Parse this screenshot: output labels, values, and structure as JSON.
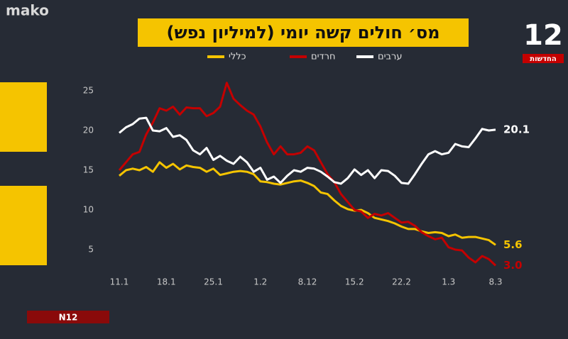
{
  "brand": "mako",
  "channel": "12",
  "channel_sub": "החדשות",
  "footer_logo": "N12",
  "chart_data": {
    "type": "line",
    "title": "מס׳ חולים קשה יומי (למיליון נפש)",
    "categories": [
      "11.1",
      null,
      null,
      null,
      null,
      null,
      null,
      "18.1",
      null,
      null,
      null,
      null,
      null,
      null,
      "25.1",
      null,
      null,
      null,
      null,
      null,
      null,
      "1.2",
      null,
      null,
      null,
      null,
      null,
      null,
      "8.12",
      null,
      null,
      null,
      null,
      null,
      null,
      "15.2",
      null,
      null,
      null,
      null,
      null,
      null,
      "22.2",
      null,
      null,
      null,
      null,
      null,
      null,
      "1.3",
      null,
      null,
      null,
      null,
      null,
      null,
      "8.3"
    ],
    "ylim": [
      2.5,
      27
    ],
    "yticks": [
      5,
      10,
      15,
      20,
      25
    ],
    "grid": false,
    "series": [
      {
        "name": "כללי",
        "color": "#f5c400",
        "values": [
          14.3,
          15.0,
          15.2,
          15.0,
          15.4,
          14.8,
          16.0,
          15.3,
          15.8,
          15.1,
          15.6,
          15.4,
          15.3,
          14.8,
          15.2,
          14.4,
          14.6,
          14.8,
          14.9,
          14.8,
          14.5,
          13.6,
          13.5,
          13.3,
          13.2,
          13.4,
          13.6,
          13.7,
          13.4,
          13.0,
          12.2,
          12.0,
          11.2,
          10.5,
          10.1,
          9.9,
          10.0,
          9.6,
          9.0,
          8.8,
          8.6,
          8.3,
          7.9,
          7.6,
          7.6,
          7.3,
          7.1,
          7.2,
          7.1,
          6.7,
          6.9,
          6.5,
          6.6,
          6.6,
          6.4,
          6.2,
          5.6
        ],
        "value_labels": [
          null,
          null,
          null,
          null,
          null,
          null,
          null,
          null,
          null,
          null,
          null,
          null,
          null,
          null,
          null,
          null,
          null,
          null,
          null,
          null,
          null,
          null,
          null,
          null,
          null,
          null,
          null,
          null,
          null,
          null,
          null,
          null,
          null,
          null,
          null,
          null,
          null,
          null,
          null,
          null,
          null,
          null,
          null,
          null,
          null,
          null,
          null,
          null,
          null,
          null,
          null,
          null,
          null,
          null,
          null,
          null,
          "5.6"
        ]
      },
      {
        "name": "חרדים",
        "color": "#c40000",
        "values": [
          15.0,
          16.0,
          17.0,
          17.3,
          19.5,
          21.0,
          22.8,
          22.5,
          23.0,
          22.0,
          22.9,
          22.8,
          22.8,
          21.8,
          22.2,
          23.0,
          26.0,
          24.0,
          23.2,
          22.5,
          22.0,
          20.5,
          18.5,
          17.0,
          18.0,
          17.0,
          17.0,
          17.2,
          18.0,
          17.5,
          16.0,
          14.5,
          13.5,
          12.0,
          11.0,
          10.0,
          9.8,
          9.0,
          9.5,
          9.3,
          9.6,
          9.0,
          8.4,
          8.5,
          8.0,
          7.2,
          6.7,
          6.3,
          6.5,
          5.3,
          5.0,
          4.9,
          4.0,
          3.4,
          4.2,
          3.8,
          3.0
        ],
        "value_labels": [
          null,
          null,
          null,
          null,
          null,
          null,
          null,
          null,
          null,
          null,
          null,
          null,
          null,
          null,
          null,
          null,
          null,
          null,
          null,
          null,
          null,
          null,
          null,
          null,
          null,
          null,
          null,
          null,
          null,
          null,
          null,
          null,
          null,
          null,
          null,
          null,
          null,
          null,
          null,
          null,
          null,
          null,
          null,
          null,
          null,
          null,
          null,
          null,
          null,
          null,
          null,
          null,
          null,
          null,
          null,
          null,
          "3.0"
        ]
      },
      {
        "name": "ערבים",
        "color": "#ffffff",
        "values": [
          19.7,
          20.4,
          20.8,
          21.5,
          21.6,
          20.0,
          19.9,
          20.3,
          19.2,
          19.4,
          18.8,
          17.5,
          17.0,
          17.8,
          16.3,
          16.8,
          16.2,
          15.8,
          16.7,
          16.0,
          14.8,
          15.3,
          13.8,
          14.2,
          13.4,
          14.3,
          15.0,
          14.8,
          15.3,
          15.2,
          14.8,
          14.2,
          13.5,
          13.3,
          14.0,
          15.1,
          14.4,
          15.0,
          14.0,
          15.0,
          14.9,
          14.3,
          13.4,
          13.3,
          14.5,
          15.8,
          17.0,
          17.4,
          17.0,
          17.2,
          18.3,
          18.0,
          17.9,
          19.0,
          20.2,
          20.0,
          20.1
        ],
        "value_labels": [
          null,
          null,
          null,
          null,
          null,
          null,
          null,
          null,
          null,
          null,
          null,
          null,
          null,
          null,
          null,
          null,
          null,
          null,
          null,
          null,
          null,
          null,
          null,
          null,
          null,
          null,
          null,
          null,
          null,
          null,
          null,
          null,
          null,
          null,
          null,
          null,
          null,
          null,
          null,
          null,
          null,
          null,
          null,
          null,
          null,
          null,
          null,
          null,
          null,
          null,
          null,
          null,
          null,
          null,
          null,
          null,
          "20.1"
        ]
      }
    ]
  }
}
